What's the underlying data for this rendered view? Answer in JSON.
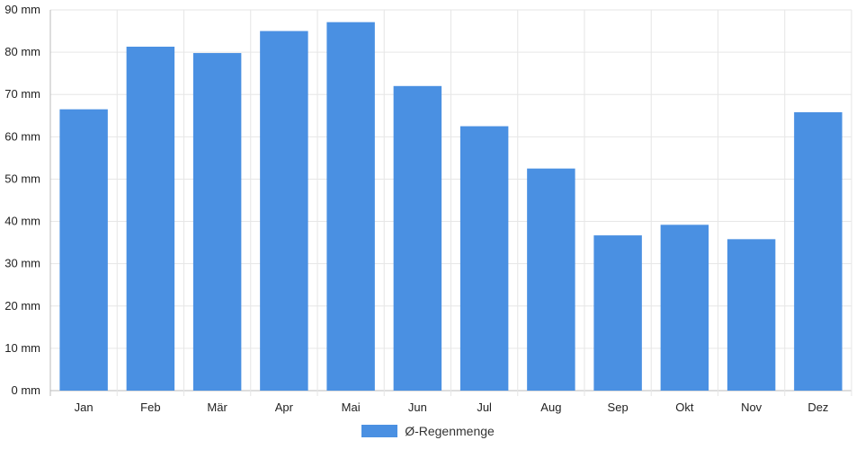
{
  "chart_data": {
    "type": "bar",
    "categories": [
      "Jan",
      "Feb",
      "Mär",
      "Apr",
      "Mai",
      "Jun",
      "Jul",
      "Aug",
      "Sep",
      "Okt",
      "Nov",
      "Dez"
    ],
    "series": [
      {
        "name": "Ø-Regenmenge",
        "values": [
          66.5,
          81.3,
          79.8,
          85.0,
          87.1,
          72.0,
          62.5,
          52.5,
          36.7,
          39.2,
          35.8,
          65.8
        ]
      }
    ],
    "ylim": [
      0,
      90
    ],
    "yticks": [
      0,
      10,
      20,
      30,
      40,
      50,
      60,
      70,
      80,
      90
    ],
    "ytick_suffix": " mm",
    "title": "",
    "xlabel": "",
    "ylabel": "",
    "grid": true,
    "legend_position": "bottom",
    "bar_color": "#4a90e2",
    "grid_color": "#e6e6e6",
    "axis_color": "#bbbbbb"
  }
}
